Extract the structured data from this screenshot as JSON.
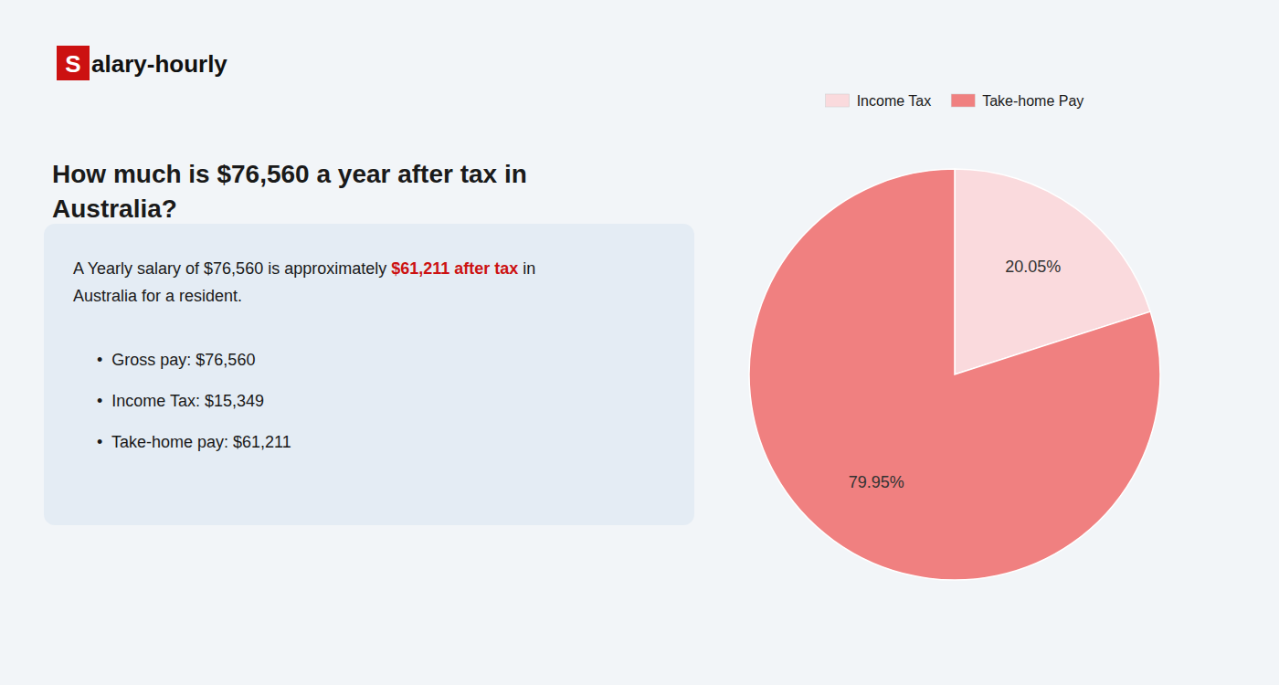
{
  "chart_data": {
    "type": "pie",
    "title": "How much is $76,560 a year after tax in\nAustralia?",
    "categories": [
      "Income Tax",
      "Take-home Pay"
    ],
    "values": [
      20.05,
      79.95
    ],
    "value_labels": [
      "20.05%",
      "79.95%"
    ],
    "colors": [
      "#fadadd",
      "#f08080"
    ],
    "data_labels": true,
    "legend": "top",
    "annotations": [
      {
        "text": "S",
        "color": "#cc1111"
      },
      {
        "text": "alary-hourly"
      },
      {
        "text": "A Yearly salary of $76,560 is approximately "
      },
      {
        "text": "$61,211 after tax",
        "color": "#cc1111"
      },
      {
        "text": " in"
      },
      {
        "text": "Australia for a resident."
      },
      {
        "text": "•  Gross pay: $76,560"
      },
      {
        "text": "•  Income Tax: $15,349"
      },
      {
        "text": "•  Take-home pay: $61,211"
      }
    ]
  }
}
